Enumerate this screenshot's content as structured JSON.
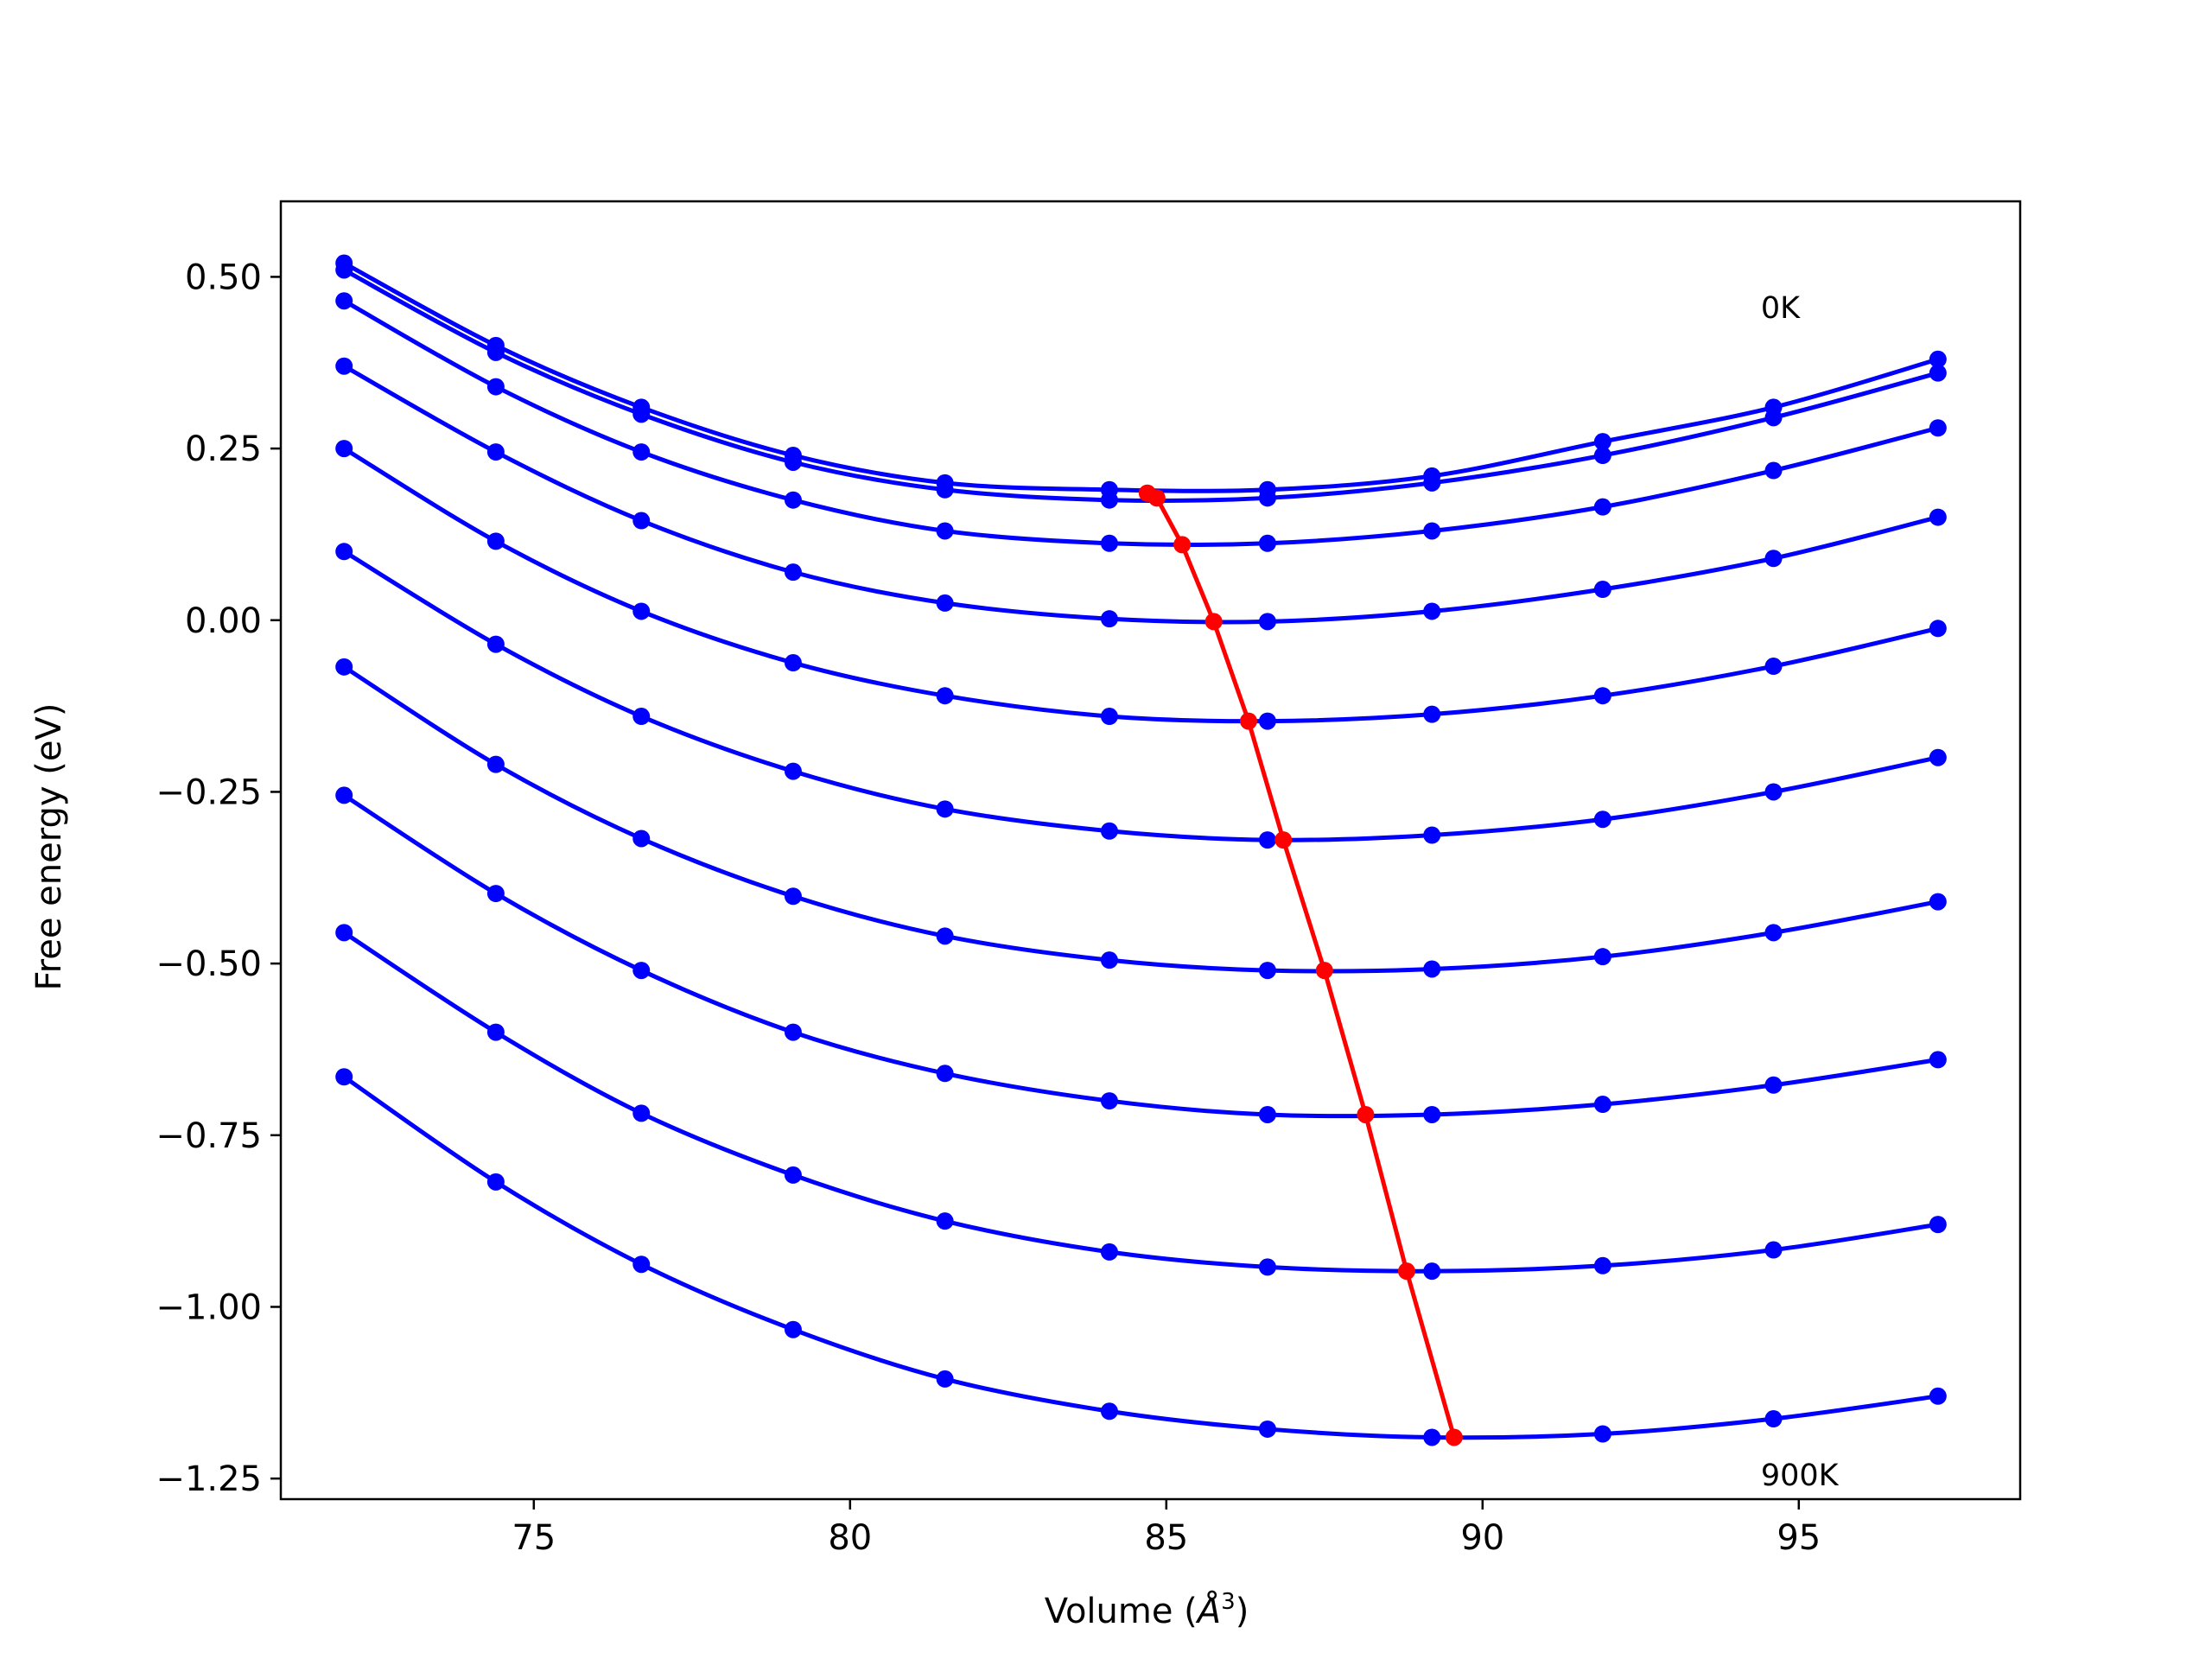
{
  "chart_data": {
    "type": "line",
    "title": "",
    "xlabel": "Volume ($\\AA^3$)",
    "xlabel_display": {
      "prefix": "Volume (",
      "symbol": "Å",
      "sup": "3",
      "suffix": ")"
    },
    "ylabel": "Free energy (eV)",
    "xlim": [
      71,
      98.5
    ],
    "ylim": [
      -1.28,
      0.61
    ],
    "xticks": [
      75,
      80,
      85,
      90,
      95
    ],
    "xtick_labels": [
      "75",
      "80",
      "85",
      "90",
      "95"
    ],
    "yticks": [
      -1.25,
      -1.0,
      -0.75,
      -0.5,
      -0.25,
      0.0,
      0.25,
      0.5
    ],
    "ytick_labels": [
      "−1.25",
      "−1.00",
      "−0.75",
      "−0.50",
      "−0.25",
      "0.00",
      "0.25",
      "0.50"
    ],
    "grid": false,
    "legend": "none",
    "colors": {
      "series": "#0000ff",
      "minimum_path": "#ff0000",
      "axes": "#000000"
    },
    "annotations": [
      {
        "text": "0K",
        "x": 94.4,
        "y": 0.44
      },
      {
        "text": "900K",
        "x": 94.4,
        "y": -1.26
      }
    ],
    "x": [
      72.0,
      74.4,
      76.7,
      79.1,
      81.5,
      84.1,
      86.6,
      89.2,
      91.9,
      94.6,
      97.2
    ],
    "series": [
      {
        "values": [
          0.52,
          0.4,
          0.31,
          0.24,
          0.2,
          0.19,
          0.19,
          0.21,
          0.26,
          0.31,
          0.38
        ]
      },
      {
        "values": [
          0.51,
          0.39,
          0.3,
          0.23,
          0.19,
          0.175,
          0.178,
          0.2,
          0.24,
          0.295,
          0.36
        ]
      },
      {
        "values": [
          0.465,
          0.34,
          0.245,
          0.175,
          0.13,
          0.112,
          0.112,
          0.13,
          0.165,
          0.218,
          0.28
        ]
      },
      {
        "values": [
          0.37,
          0.245,
          0.145,
          0.07,
          0.025,
          0.002,
          -0.002,
          0.013,
          0.045,
          0.09,
          0.15
        ]
      },
      {
        "values": [
          0.25,
          0.115,
          0.013,
          -0.062,
          -0.11,
          -0.14,
          -0.147,
          -0.137,
          -0.11,
          -0.067,
          -0.012
        ]
      },
      {
        "values": [
          0.1,
          -0.035,
          -0.14,
          -0.22,
          -0.275,
          -0.307,
          -0.32,
          -0.313,
          -0.29,
          -0.25,
          -0.2
        ]
      },
      {
        "values": [
          -0.068,
          -0.21,
          -0.318,
          -0.402,
          -0.46,
          -0.495,
          -0.51,
          -0.508,
          -0.49,
          -0.455,
          -0.41
        ]
      },
      {
        "values": [
          -0.255,
          -0.398,
          -0.51,
          -0.6,
          -0.66,
          -0.7,
          -0.72,
          -0.72,
          -0.705,
          -0.677,
          -0.64
        ]
      },
      {
        "values": [
          -0.455,
          -0.6,
          -0.718,
          -0.808,
          -0.875,
          -0.92,
          -0.942,
          -0.948,
          -0.94,
          -0.917,
          -0.88
        ]
      },
      {
        "values": [
          -0.665,
          -0.818,
          -0.938,
          -1.033,
          -1.105,
          -1.152,
          -1.178,
          -1.19,
          -1.185,
          -1.163,
          -1.13
        ]
      }
    ],
    "minimum_path": {
      "x": [
        84.7,
        84.85,
        85.25,
        85.75,
        86.3,
        86.85,
        87.5,
        88.15,
        88.8,
        89.55
      ],
      "y": [
        0.185,
        0.178,
        0.11,
        -0.002,
        -0.147,
        -0.32,
        -0.51,
        -0.72,
        -0.948,
        -1.19
      ]
    }
  }
}
